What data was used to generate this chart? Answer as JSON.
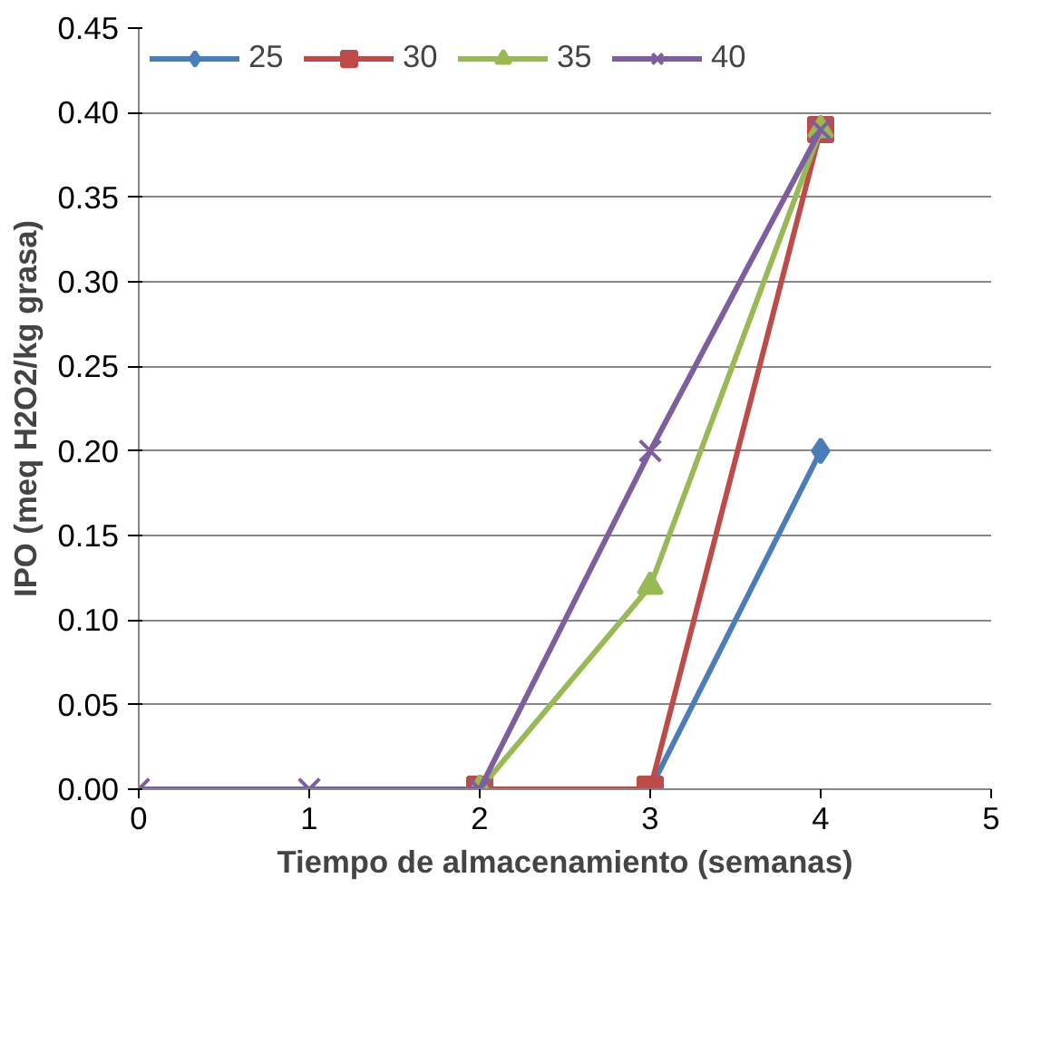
{
  "chart_data": {
    "type": "line",
    "xlabel": "Tiempo de almacenamiento (semanas)",
    "ylabel": "IPO (meq H2O2/kg grasa)",
    "x": [
      0,
      1,
      2,
      3,
      4
    ],
    "series": [
      {
        "name": "25",
        "color": "#4a7ebb",
        "marker": "diamond",
        "values": [
          null,
          null,
          null,
          0,
          0.2
        ]
      },
      {
        "name": "30",
        "color": "#be4b48",
        "marker": "square",
        "values": [
          null,
          null,
          0,
          0,
          0.39
        ]
      },
      {
        "name": "35",
        "color": "#98b954",
        "marker": "triangle",
        "values": [
          null,
          null,
          0,
          0.12,
          0.39
        ]
      },
      {
        "name": "40",
        "color": "#7d5fa0",
        "marker": "cross",
        "values": [
          0,
          0,
          0,
          0.2,
          0.39
        ]
      }
    ],
    "xlim": [
      0,
      5
    ],
    "xticks": [
      0,
      1,
      2,
      3,
      4,
      5
    ],
    "ylim": [
      0,
      0.45
    ],
    "yticks": [
      {
        "value": 0,
        "label": "0.00"
      },
      {
        "value": 0.05,
        "label": "0.05"
      },
      {
        "value": 0.1,
        "label": "0.10"
      },
      {
        "value": 0.15,
        "label": "0.15"
      },
      {
        "value": 0.2,
        "label": "0.20"
      },
      {
        "value": 0.25,
        "label": "0.25"
      },
      {
        "value": 0.3,
        "label": "0.30"
      },
      {
        "value": 0.35,
        "label": "0.35"
      },
      {
        "value": 0.4,
        "label": "0.40"
      },
      {
        "value": 0.45,
        "label": "0.45"
      }
    ],
    "grid": "y",
    "legend": "top left",
    "line_style": "solid"
  }
}
